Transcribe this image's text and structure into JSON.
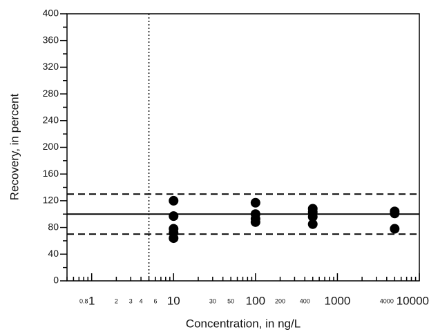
{
  "chart_data": {
    "type": "scatter",
    "xlabel": "Concentration, in ng/L",
    "ylabel": "Recovery, in percent",
    "xscale": "log",
    "xlim": [
      0.5,
      10000
    ],
    "ylim": [
      0,
      400
    ],
    "xticks": [
      0.8,
      1,
      2,
      3,
      4,
      6,
      10,
      30,
      50,
      100,
      200,
      400,
      1000,
      4000,
      10000
    ],
    "xminorticks": [
      0.5,
      0.6,
      0.7,
      0.8,
      0.9,
      2,
      3,
      4,
      5,
      6,
      7,
      8,
      9,
      20,
      30,
      40,
      50,
      60,
      70,
      80,
      90,
      200,
      300,
      400,
      500,
      600,
      700,
      800,
      900,
      2000,
      3000,
      4000,
      5000,
      6000,
      7000,
      8000,
      9000
    ],
    "yticks": [
      0,
      40,
      80,
      120,
      160,
      200,
      240,
      280,
      320,
      360,
      400
    ],
    "yminorticks": [
      20,
      60,
      100,
      140,
      180,
      220,
      260,
      300,
      340,
      380
    ],
    "hlines": [
      {
        "y": 100,
        "style": "solid"
      },
      {
        "y": 130,
        "style": "dashed"
      },
      {
        "y": 70,
        "style": "dashed"
      }
    ],
    "vlines": [
      {
        "x": 5,
        "style": "dotted"
      }
    ],
    "series": [
      {
        "color": "#000000",
        "x": [
          10,
          10,
          10,
          10,
          10,
          100,
          100,
          100,
          100,
          500,
          500,
          500,
          500,
          5000,
          5000,
          5000
        ],
        "values": [
          120,
          97,
          78,
          72,
          64,
          117,
          100,
          93,
          88,
          108,
          103,
          96,
          85,
          104,
          101,
          78
        ]
      }
    ]
  }
}
